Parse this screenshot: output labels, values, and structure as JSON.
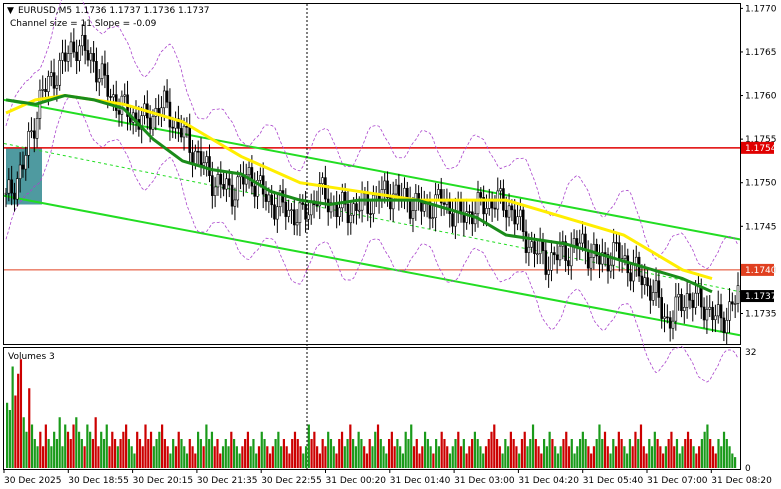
{
  "header": {
    "symbol_line": "EURUSD,M5  1.1736 1.1737 1.1736 1.1737",
    "channel_line": "Channel size = 11 Slope = -0.09"
  },
  "chart_data": [
    {
      "type": "candlestick",
      "title": "EURUSD,M5",
      "ylim": [
        1.17315,
        1.17705
      ],
      "y_ticks": [
        "1.1770",
        "1.1765",
        "1.1760",
        "1.1755",
        "1.1750",
        "1.1745",
        "1.1740",
        "1.1735"
      ],
      "x_ticks": [
        "30 Dec 2025",
        "30 Dec 18:55",
        "30 Dec 20:15",
        "30 Dec 21:35",
        "30 Dec 22:55",
        "31 Dec 00:20",
        "31 Dec 01:40",
        "31 Dec 03:00",
        "31 Dec 04:20",
        "31 Dec 05:40",
        "31 Dec 07:00",
        "31 Dec 08:20"
      ],
      "current_price_label": "1.1737",
      "levels": [
        {
          "value": 1.1754,
          "label": "1.1754",
          "color": "#e00000"
        },
        {
          "value": 1.174,
          "label": "1.1740",
          "color": "#e04020"
        }
      ],
      "ohlc_anchor_closes": [
        1.1748,
        1.1752,
        1.176,
        1.1763,
        1.1766,
        1.1764,
        1.176,
        1.1758,
        1.1757,
        1.1759,
        1.1756,
        1.1753,
        1.175,
        1.1749,
        1.1751,
        1.1748,
        1.1747,
        1.1746,
        1.1749,
        1.1747,
        1.1747,
        1.1748,
        1.1749,
        1.1748,
        1.1747,
        1.1748,
        1.1746,
        1.1747,
        1.1748,
        1.1747,
        1.1743,
        1.1741,
        1.1742,
        1.1743,
        1.1741,
        1.1742,
        1.174,
        1.1738,
        1.1734,
        1.1737,
        1.1736,
        1.1734,
        1.1737
      ],
      "series": [
        {
          "name": "",
          "kind": "moving-average",
          "color": "#ffee00",
          "values": [
            1.1758,
            1.17595,
            1.176,
            1.17595,
            1.1759,
            1.1758,
            1.1757,
            1.1755,
            1.1753,
            1.17515,
            1.175,
            1.17495,
            1.1749,
            1.17485,
            1.1748,
            1.1748,
            1.1748,
            1.1748,
            1.1747,
            1.1746,
            1.1745,
            1.1744,
            1.1742,
            1.174,
            1.1739
          ]
        },
        {
          "name": "",
          "kind": "moving-average",
          "color": "#1a8c1a",
          "values": [
            1.17595,
            1.1759,
            1.176,
            1.17595,
            1.17585,
            1.1755,
            1.17525,
            1.17515,
            1.1751,
            1.1749,
            1.1748,
            1.17475,
            1.1748,
            1.1748,
            1.1748,
            1.1747,
            1.1746,
            1.1744,
            1.17435,
            1.1743,
            1.1742,
            1.1741,
            1.174,
            1.1739,
            1.17375
          ]
        }
      ],
      "channel": {
        "upper": [
          1.17595,
          1.17435
        ],
        "lower": [
          1.17485,
          1.17325
        ],
        "middle": [
          1.17545,
          1.17375
        ]
      }
    },
    {
      "type": "bar",
      "title": "Volumes 3",
      "ylim": [
        0,
        32
      ],
      "y_ticks": [
        "32",
        "0"
      ],
      "values": [
        18,
        16,
        28,
        20,
        26,
        30,
        14,
        10,
        22,
        12,
        8,
        6,
        10,
        6,
        12,
        8,
        6,
        10,
        8,
        14,
        6,
        12,
        10,
        8,
        12,
        14,
        10,
        8,
        6,
        12,
        10,
        8,
        14,
        6,
        10,
        8,
        12,
        6,
        10,
        8,
        6,
        8,
        10,
        12,
        8,
        6,
        4,
        10,
        8,
        6,
        12,
        8,
        10,
        6,
        8,
        10,
        12,
        8,
        6,
        4,
        8,
        6,
        10,
        8,
        6,
        4,
        8,
        6,
        4,
        10,
        8,
        6,
        12,
        8,
        10,
        6,
        8,
        4,
        6,
        8,
        6,
        10,
        8,
        6,
        4,
        6,
        8,
        10,
        6,
        8,
        4,
        6,
        10,
        8,
        6,
        4,
        6,
        8,
        10,
        6,
        8,
        6,
        4,
        8,
        10,
        8,
        6,
        4,
        6,
        12,
        8,
        10,
        6,
        4,
        8,
        6,
        10,
        8,
        6,
        4,
        8,
        10,
        6,
        8,
        12,
        8,
        6,
        10,
        8,
        6,
        4,
        8,
        6,
        10,
        12,
        8,
        6,
        4,
        8,
        10,
        6,
        8,
        6,
        4,
        10,
        8,
        12,
        6,
        8,
        4,
        6,
        10,
        8,
        6,
        4,
        8,
        6,
        10,
        8,
        6,
        4,
        6,
        8,
        10,
        6,
        8,
        4,
        6,
        8,
        10,
        8,
        6,
        4,
        6,
        8,
        10,
        12,
        8,
        6,
        4,
        8,
        6,
        10,
        8,
        6,
        4,
        8,
        10,
        6,
        8,
        12,
        8,
        6,
        4,
        8,
        6,
        10,
        8,
        6,
        4,
        6,
        8,
        10,
        6,
        8,
        4,
        6,
        8,
        10,
        8,
        6,
        4,
        6,
        8,
        12,
        8,
        10,
        6,
        4,
        8,
        6,
        10,
        8,
        6,
        4,
        8,
        6,
        10,
        8,
        12,
        6,
        4,
        8,
        6,
        10,
        8,
        6,
        4,
        6,
        8,
        10,
        6,
        8,
        4,
        6,
        8,
        10,
        8,
        6,
        4,
        6,
        8,
        10,
        12,
        8,
        6,
        4,
        8,
        6,
        10,
        8,
        6,
        4,
        3
      ]
    }
  ],
  "colors": {
    "bull": "#1a9a1a",
    "bear": "#cc0000",
    "channel": "#22dd22",
    "envelope": "#aa44cc",
    "box": "#4f9aa0"
  }
}
